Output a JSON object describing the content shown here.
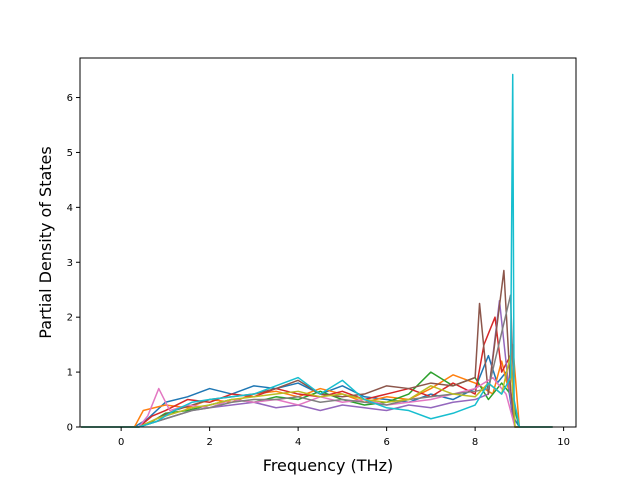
{
  "chart_data": {
    "type": "line",
    "title": "",
    "xlabel": "Frequency (THz)",
    "ylabel": "Partial Density of States",
    "xlim": [
      -0.93,
      10.28
    ],
    "ylim": [
      0,
      6.72
    ],
    "xticks": [
      0,
      2,
      4,
      6,
      8,
      10
    ],
    "yticks": [
      0,
      1,
      2,
      3,
      4,
      5,
      6
    ],
    "grid": false,
    "legend": "none",
    "colors": [
      "#1f77b4",
      "#ff7f0e",
      "#2ca02c",
      "#d62728",
      "#9467bd",
      "#8c564b",
      "#e377c2",
      "#7f7f7f",
      "#bcbd22",
      "#17becf"
    ],
    "series": [
      {
        "color": "#1f77b4",
        "x": [
          -0.9,
          0.3,
          0.6,
          1.0,
          1.5,
          2.0,
          2.5,
          3.0,
          3.5,
          4.0,
          4.5,
          5.0,
          5.5,
          6.0,
          6.5,
          7.0,
          7.5,
          8.0,
          8.3,
          8.5,
          8.7,
          8.85,
          9.0,
          9.75
        ],
        "y": [
          0,
          0,
          0.15,
          0.45,
          0.55,
          0.7,
          0.6,
          0.75,
          0.7,
          0.8,
          0.6,
          0.75,
          0.55,
          0.5,
          0.45,
          0.6,
          0.5,
          0.7,
          1.3,
          0.8,
          1.0,
          0.2,
          0,
          0
        ]
      },
      {
        "color": "#ff7f0e",
        "x": [
          -0.9,
          0.3,
          0.5,
          1.0,
          1.5,
          2.0,
          2.5,
          3.0,
          3.5,
          4.0,
          4.5,
          5.0,
          5.5,
          6.0,
          6.5,
          7.0,
          7.5,
          8.0,
          8.4,
          8.6,
          8.75,
          8.85,
          9.0,
          9.75
        ],
        "y": [
          0,
          0,
          0.3,
          0.4,
          0.35,
          0.5,
          0.45,
          0.6,
          0.65,
          0.55,
          0.7,
          0.6,
          0.45,
          0.55,
          0.5,
          0.7,
          0.95,
          0.8,
          0.6,
          1.2,
          0.7,
          1.5,
          0,
          0
        ]
      },
      {
        "color": "#2ca02c",
        "x": [
          -0.9,
          0.4,
          0.7,
          1.0,
          1.5,
          2.0,
          2.5,
          3.0,
          3.5,
          4.0,
          4.5,
          5.0,
          5.5,
          6.0,
          6.5,
          7.0,
          7.5,
          8.0,
          8.3,
          8.6,
          8.8,
          9.0,
          9.75
        ],
        "y": [
          0,
          0,
          0.1,
          0.25,
          0.3,
          0.4,
          0.5,
          0.45,
          0.55,
          0.5,
          0.65,
          0.5,
          0.4,
          0.45,
          0.6,
          1.0,
          0.75,
          0.9,
          0.5,
          0.8,
          0.6,
          0,
          0
        ]
      },
      {
        "color": "#d62728",
        "x": [
          -0.9,
          0.4,
          0.7,
          1.0,
          1.5,
          2.0,
          2.5,
          3.0,
          3.5,
          4.0,
          4.5,
          5.0,
          5.5,
          6.0,
          6.5,
          7.0,
          7.5,
          8.0,
          8.2,
          8.45,
          8.6,
          8.8,
          8.9,
          9.75
        ],
        "y": [
          0,
          0,
          0.2,
          0.3,
          0.5,
          0.45,
          0.6,
          0.55,
          0.7,
          0.6,
          0.55,
          0.65,
          0.5,
          0.6,
          0.7,
          0.55,
          0.8,
          0.6,
          1.5,
          2.0,
          1.0,
          1.3,
          0,
          0
        ]
      },
      {
        "color": "#9467bd",
        "x": [
          -0.9,
          0.4,
          0.8,
          1.2,
          1.6,
          2.0,
          2.5,
          3.0,
          3.5,
          4.0,
          4.5,
          5.0,
          5.5,
          6.0,
          6.5,
          7.0,
          7.5,
          8.0,
          8.3,
          8.55,
          8.75,
          8.9,
          9.75
        ],
        "y": [
          0,
          0,
          0.1,
          0.2,
          0.3,
          0.35,
          0.4,
          0.45,
          0.35,
          0.4,
          0.3,
          0.4,
          0.35,
          0.3,
          0.4,
          0.35,
          0.45,
          0.5,
          0.6,
          2.3,
          0.8,
          0,
          0
        ]
      },
      {
        "color": "#8c564b",
        "x": [
          -0.9,
          0.4,
          0.8,
          1.2,
          1.6,
          2.0,
          2.5,
          3.0,
          3.5,
          4.0,
          4.5,
          5.0,
          5.5,
          6.0,
          6.5,
          7.0,
          7.5,
          8.0,
          8.1,
          8.3,
          8.65,
          8.8,
          8.9,
          9.75
        ],
        "y": [
          0,
          0,
          0.15,
          0.3,
          0.4,
          0.5,
          0.55,
          0.6,
          0.7,
          0.85,
          0.6,
          0.55,
          0.6,
          0.75,
          0.7,
          0.8,
          0.75,
          0.9,
          2.25,
          0.6,
          2.85,
          0.7,
          0,
          0
        ]
      },
      {
        "color": "#e377c2",
        "x": [
          -0.9,
          0.4,
          0.6,
          0.85,
          1.1,
          1.5,
          2.0,
          2.5,
          3.0,
          3.5,
          4.0,
          4.5,
          5.0,
          5.5,
          6.0,
          6.5,
          7.0,
          7.5,
          8.0,
          8.4,
          8.7,
          8.9,
          9.75
        ],
        "y": [
          0,
          0,
          0.2,
          0.7,
          0.3,
          0.4,
          0.35,
          0.5,
          0.45,
          0.5,
          0.4,
          0.55,
          0.45,
          0.5,
          0.4,
          0.45,
          0.5,
          0.6,
          0.7,
          0.9,
          0.6,
          0,
          0
        ]
      },
      {
        "color": "#7f7f7f",
        "x": [
          -0.9,
          0.4,
          0.8,
          1.2,
          1.6,
          2.0,
          2.5,
          3.0,
          3.5,
          4.0,
          4.5,
          5.0,
          5.5,
          6.0,
          6.5,
          7.0,
          7.5,
          8.0,
          8.3,
          8.8,
          8.9,
          9.75
        ],
        "y": [
          0,
          0,
          0.1,
          0.2,
          0.3,
          0.35,
          0.45,
          0.5,
          0.5,
          0.55,
          0.45,
          0.5,
          0.45,
          0.4,
          0.5,
          0.55,
          0.6,
          0.65,
          0.7,
          2.4,
          0,
          0
        ]
      },
      {
        "color": "#bcbd22",
        "x": [
          -0.9,
          0.4,
          0.8,
          1.2,
          1.6,
          2.0,
          2.5,
          3.0,
          3.5,
          4.0,
          4.5,
          5.0,
          5.5,
          6.0,
          6.5,
          7.0,
          7.5,
          8.0,
          8.3,
          8.6,
          8.8,
          8.9,
          9.75
        ],
        "y": [
          0,
          0,
          0.15,
          0.25,
          0.35,
          0.4,
          0.5,
          0.55,
          0.6,
          0.65,
          0.55,
          0.6,
          0.5,
          0.45,
          0.5,
          0.75,
          0.6,
          0.55,
          0.8,
          0.6,
          1.3,
          0,
          0
        ]
      },
      {
        "color": "#17becf",
        "x": [
          -0.9,
          0.4,
          0.8,
          1.2,
          1.6,
          2.0,
          2.5,
          3.0,
          3.5,
          4.0,
          4.5,
          5.0,
          5.5,
          6.0,
          6.5,
          7.0,
          7.5,
          8.0,
          8.3,
          8.6,
          8.8,
          8.85,
          8.88,
          9.0,
          9.75
        ],
        "y": [
          0,
          0,
          0.1,
          0.3,
          0.45,
          0.5,
          0.55,
          0.6,
          0.75,
          0.9,
          0.6,
          0.85,
          0.5,
          0.35,
          0.3,
          0.15,
          0.25,
          0.4,
          0.8,
          0.6,
          0.9,
          6.42,
          0.5,
          0,
          0
        ]
      }
    ]
  }
}
